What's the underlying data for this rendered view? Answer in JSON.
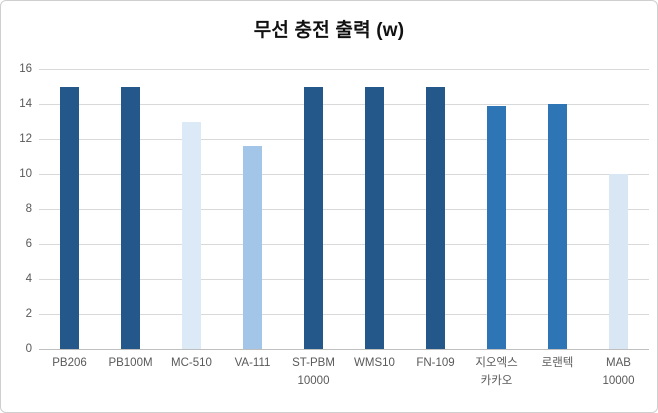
{
  "chart_data": {
    "type": "bar",
    "title": "무선 충전 출력 (w)",
    "categories": [
      "PB206",
      "PB100M",
      "MC-510",
      "VA-111",
      "ST-PBM 10000",
      "WMS10",
      "FN-109",
      "지오엑스 카카오",
      "로랜텍",
      "MAB 10000"
    ],
    "category_lines": [
      [
        "PB206"
      ],
      [
        "PB100M"
      ],
      [
        "MC-510"
      ],
      [
        "VA-111"
      ],
      [
        "ST-PBM",
        "10000"
      ],
      [
        "WMS10"
      ],
      [
        "FN-109"
      ],
      [
        "지오엑스",
        "카카오"
      ],
      [
        "로랜텍"
      ],
      [
        "MAB",
        "10000"
      ]
    ],
    "values": [
      15,
      15,
      13,
      11.6,
      15,
      15,
      15,
      13.9,
      14,
      10
    ],
    "bar_colors": [
      "#24588a",
      "#24588a",
      "#dce9f7",
      "#a3c6e8",
      "#24588a",
      "#24588a",
      "#24588a",
      "#2e75b6",
      "#2e75b6",
      "#d9e7f5"
    ],
    "xlabel": "",
    "ylabel": "",
    "ylim": [
      0,
      16
    ],
    "yticks": [
      0,
      2,
      4,
      6,
      8,
      10,
      12,
      14,
      16
    ],
    "grid": true,
    "legend": "none"
  },
  "colors": {
    "grid": "#d9d9d9",
    "axis_line": "#bfbfbf",
    "tick_text": "#595959",
    "title_text": "#111111",
    "frame_border": "#cfcfcf",
    "background": "#ffffff"
  }
}
